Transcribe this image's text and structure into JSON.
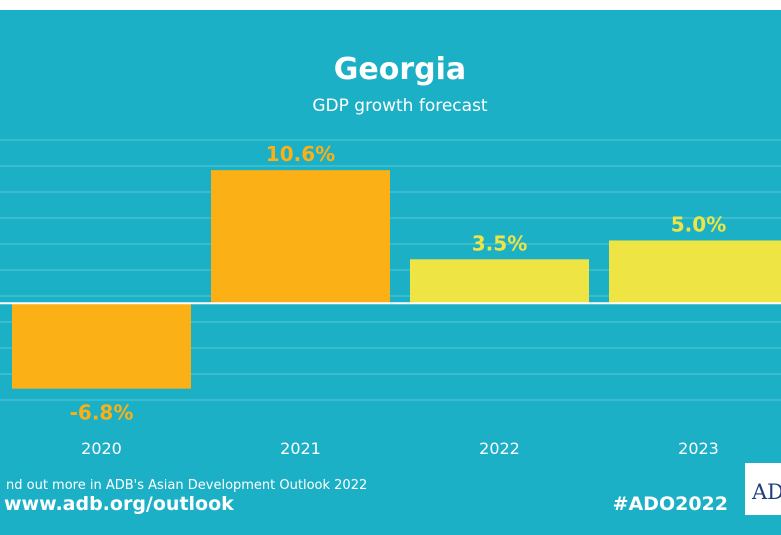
{
  "chart_data": {
    "type": "bar",
    "title": "Georgia",
    "subtitle": "GDP growth forecast",
    "categories": [
      "2020",
      "2021",
      "2022",
      "2023"
    ],
    "values": [
      -6.8,
      10.6,
      3.5,
      5.0
    ],
    "data_labels": [
      "-6.8%",
      "10.6%",
      "3.5%",
      "5.0%"
    ],
    "ylim": [
      -8.5,
      13
    ],
    "grid": true,
    "colors": {
      "background": "#1bb0c6",
      "actual": "#fbb116",
      "forecast": "#eee544",
      "actual_label": "#fbb116",
      "forecast_label": "#eee544",
      "grid": "#56c7d6",
      "zero_line": "#ffffff"
    },
    "forecast_from_index": 2
  },
  "footer": {
    "line1": "nd out more in ADB's Asian Development Outlook 2022",
    "line2": "www.adb.org/outlook",
    "hashtag": "#ADO2022",
    "logo": "AD"
  }
}
